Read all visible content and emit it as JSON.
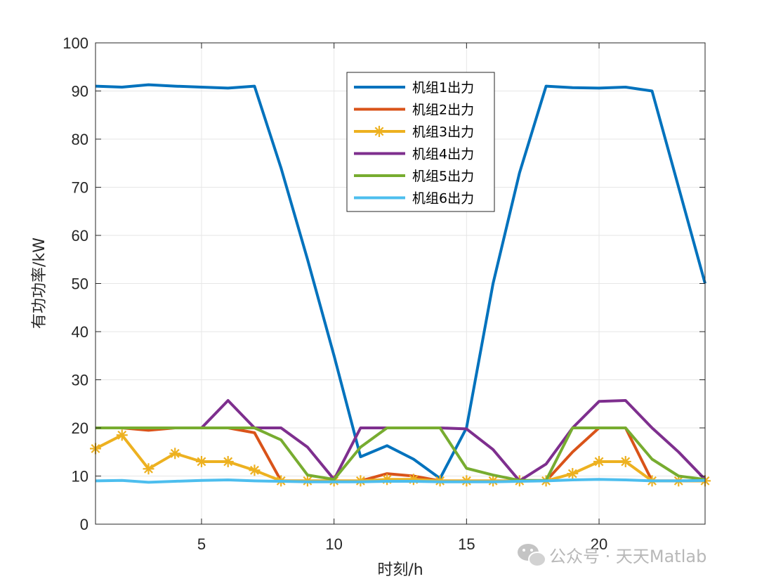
{
  "watermark": {
    "text": "公众号 · 天天Matlab",
    "icon": "wechat-icon"
  },
  "chart_data": {
    "type": "line",
    "title": "",
    "xlabel": "时刻/h",
    "ylabel": "有功功率/kW",
    "xlim": [
      1,
      24
    ],
    "ylim": [
      0,
      100
    ],
    "xticks": [
      5,
      10,
      15,
      20
    ],
    "yticks": [
      0,
      10,
      20,
      30,
      40,
      50,
      60,
      70,
      80,
      90,
      100
    ],
    "grid": true,
    "legend_position": "top-center",
    "x": [
      1,
      2,
      3,
      4,
      5,
      6,
      7,
      8,
      9,
      10,
      11,
      12,
      13,
      14,
      15,
      16,
      17,
      18,
      19,
      20,
      21,
      22,
      23,
      24
    ],
    "series": [
      {
        "name": "机组1出力",
        "color": "#0072BD",
        "marker": "none",
        "values": [
          91,
          90.8,
          91.3,
          91,
          90.8,
          90.6,
          91,
          74,
          55,
          35,
          14,
          16.3,
          13.5,
          9.5,
          20,
          50,
          73,
          91,
          90.7,
          90.6,
          90.8,
          90,
          70,
          50
        ]
      },
      {
        "name": "机组2出力",
        "color": "#D95319",
        "marker": "none",
        "values": [
          20,
          20,
          19.5,
          20,
          20,
          20,
          19,
          9,
          9,
          9,
          9,
          10.5,
          10,
          9,
          9,
          9,
          9,
          9,
          15,
          20,
          20,
          9,
          9,
          9
        ]
      },
      {
        "name": "机组3出力",
        "color": "#EDB120",
        "marker": "asterisk",
        "values": [
          15.7,
          18.5,
          11.5,
          14.7,
          13,
          13,
          11.2,
          9,
          9,
          9,
          9,
          9.3,
          9.3,
          9,
          9,
          9,
          9,
          9,
          10.5,
          13,
          13,
          9,
          9,
          9
        ]
      },
      {
        "name": "机组4出力",
        "color": "#7E2F8E",
        "marker": "none",
        "values": [
          20,
          20,
          20,
          20,
          20,
          25.7,
          20,
          20,
          16,
          9.3,
          20,
          20,
          20,
          20,
          19.8,
          15.5,
          9,
          12.5,
          20,
          25.5,
          25.7,
          20,
          15,
          9.3
        ]
      },
      {
        "name": "机组5出力",
        "color": "#77AC30",
        "marker": "none",
        "values": [
          20,
          20,
          20,
          20,
          20,
          20,
          20,
          17.5,
          10.2,
          9.3,
          16,
          20,
          20,
          20,
          11.6,
          10.2,
          9.1,
          9.1,
          20,
          20,
          20,
          13.5,
          10,
          9.3
        ]
      },
      {
        "name": "机组6出力",
        "color": "#4DBEEE",
        "marker": "none",
        "values": [
          9,
          9.1,
          8.7,
          8.9,
          9.1,
          9.2,
          9,
          8.9,
          8.8,
          8.8,
          8.8,
          8.9,
          8.9,
          8.8,
          8.8,
          8.8,
          8.9,
          9,
          9.2,
          9.3,
          9.2,
          9,
          9,
          9.1
        ]
      }
    ]
  }
}
